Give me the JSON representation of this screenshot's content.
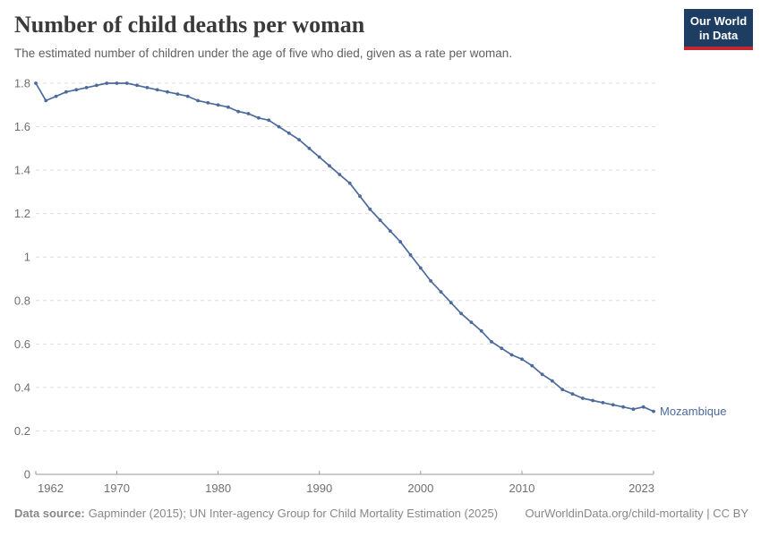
{
  "header": {
    "title": "Number of child deaths per woman",
    "subtitle": "The estimated number of children under the age of five who died, given as a rate per woman.",
    "logo": {
      "line1": "Our World",
      "line2": "in Data"
    }
  },
  "footer": {
    "datasource_label": "Data source:",
    "datasource_text": "Gapminder (2015); UN Inter-agency Group for Child Mortality Estimation (2025)",
    "credit": "OurWorldinData.org/child-mortality | CC BY"
  },
  "colors": {
    "line": "#4c6a9c",
    "entity_label": "#4c6a9c",
    "grid": "#dedede",
    "axis": "#9a9a9a",
    "tick_label": "#6f6f6f",
    "logo_bg": "#1d3d63",
    "logo_bar": "#c1272d"
  },
  "chart_data": {
    "type": "line",
    "title": "Number of child deaths per woman",
    "subtitle": "The estimated number of children under the age of five who died, given as a rate per woman.",
    "xlabel": "",
    "ylabel": "",
    "xlim": [
      1962,
      2023
    ],
    "ylim": [
      0,
      1.8
    ],
    "grid": "horizontal-dashed",
    "legend_position": "end-of-line-label",
    "xticks": [
      1962,
      1970,
      1980,
      1990,
      2000,
      2010,
      2023
    ],
    "xtick_labels": [
      "1962",
      "1970",
      "1980",
      "1990",
      "2000",
      "2010",
      "2023"
    ],
    "yticks": [
      0,
      0.2,
      0.4,
      0.6,
      0.8,
      1,
      1.2,
      1.4,
      1.6,
      1.8
    ],
    "ytick_labels": [
      "0",
      "0.2",
      "0.4",
      "0.6",
      "0.8",
      "1",
      "1.2",
      "1.4",
      "1.6",
      "1.8"
    ],
    "series": [
      {
        "name": "Mozambique",
        "color": "#4c6a9c",
        "years": [
          1962,
          1963,
          1964,
          1965,
          1966,
          1967,
          1968,
          1969,
          1970,
          1971,
          1972,
          1973,
          1974,
          1975,
          1976,
          1977,
          1978,
          1979,
          1980,
          1981,
          1982,
          1983,
          1984,
          1985,
          1986,
          1987,
          1988,
          1989,
          1990,
          1991,
          1992,
          1993,
          1994,
          1995,
          1996,
          1997,
          1998,
          1999,
          2000,
          2001,
          2002,
          2003,
          2004,
          2005,
          2006,
          2007,
          2008,
          2009,
          2010,
          2011,
          2012,
          2013,
          2014,
          2015,
          2016,
          2017,
          2018,
          2019,
          2020,
          2021,
          2022,
          2023
        ],
        "values": [
          1.8,
          1.72,
          1.74,
          1.76,
          1.77,
          1.78,
          1.79,
          1.8,
          1.8,
          1.8,
          1.79,
          1.78,
          1.77,
          1.76,
          1.75,
          1.74,
          1.72,
          1.71,
          1.7,
          1.69,
          1.67,
          1.66,
          1.64,
          1.63,
          1.6,
          1.57,
          1.54,
          1.5,
          1.46,
          1.42,
          1.38,
          1.34,
          1.28,
          1.22,
          1.17,
          1.12,
          1.07,
          1.01,
          0.95,
          0.89,
          0.84,
          0.79,
          0.74,
          0.7,
          0.66,
          0.61,
          0.58,
          0.55,
          0.53,
          0.5,
          0.46,
          0.43,
          0.39,
          0.37,
          0.35,
          0.34,
          0.33,
          0.32,
          0.31,
          0.3,
          0.31,
          0.29
        ]
      }
    ]
  }
}
